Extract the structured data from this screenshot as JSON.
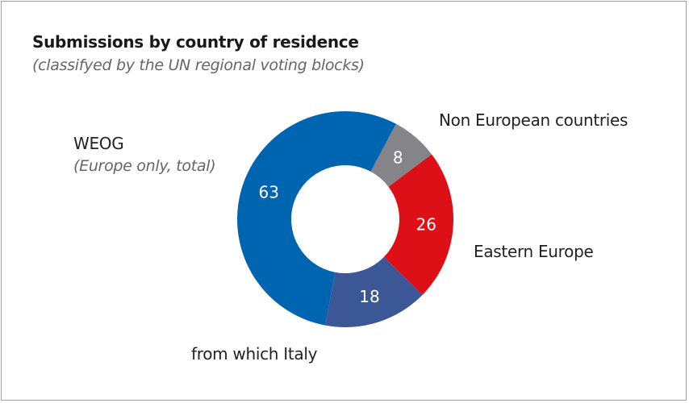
{
  "chart_data": {
    "type": "pie",
    "donut": true,
    "title": "Submissions by country of residence",
    "subtitle": "(classifyed by the UN regional voting blocks)",
    "slices": [
      {
        "label": "Non European countries",
        "value": 8,
        "color": "#85848b"
      },
      {
        "label": "Eastern Europe",
        "value": 26,
        "color": "#dd0f17"
      },
      {
        "label": "from which Italy",
        "value": 18,
        "color": "#3b5796"
      },
      {
        "label": "WEOG",
        "sublabel": "(Europe only, total)",
        "value": 63,
        "color": "#0065b0"
      }
    ]
  }
}
